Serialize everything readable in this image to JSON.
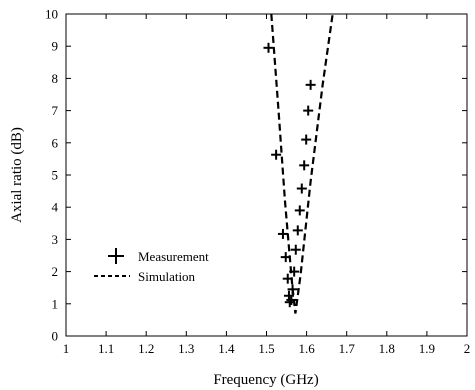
{
  "chart_data": {
    "type": "scatter",
    "xlabel": "Frequency (GHz)",
    "ylabel": "Axial ratio (dB)",
    "xlim": [
      1,
      2
    ],
    "ylim": [
      0,
      10
    ],
    "x_ticks": [
      "1",
      "1.1",
      "1.2",
      "1.3",
      "1.4",
      "1.5",
      "1.6",
      "1.7",
      "1.8",
      "1.9",
      "2"
    ],
    "y_ticks": [
      "0",
      "1",
      "2",
      "3",
      "4",
      "5",
      "6",
      "7",
      "8",
      "9",
      "10"
    ],
    "grid": false,
    "legend_position": "bottom-left",
    "series": [
      {
        "name": "Measurement",
        "style": "plus-markers",
        "color": "#000000",
        "points": [
          [
            1.505,
            8.95
          ],
          [
            1.524,
            5.63
          ],
          [
            1.541,
            3.17
          ],
          [
            1.548,
            2.45
          ],
          [
            1.553,
            1.78
          ],
          [
            1.556,
            1.25
          ],
          [
            1.558,
            1.05
          ],
          [
            1.562,
            1.12
          ],
          [
            1.565,
            1.45
          ],
          [
            1.569,
            2.0
          ],
          [
            1.573,
            2.68
          ],
          [
            1.578,
            3.28
          ],
          [
            1.583,
            3.9
          ],
          [
            1.588,
            4.58
          ],
          [
            1.594,
            5.3
          ],
          [
            1.599,
            6.1
          ],
          [
            1.604,
            7.0
          ],
          [
            1.61,
            7.8
          ]
        ]
      },
      {
        "name": "Simulation",
        "style": "dashed-line",
        "color": "#000000",
        "points": [
          [
            1.512,
            10.0
          ],
          [
            1.53,
            7.0
          ],
          [
            1.546,
            4.2
          ],
          [
            1.557,
            2.6
          ],
          [
            1.564,
            1.6
          ],
          [
            1.572,
            0.7
          ],
          [
            1.585,
            1.9
          ],
          [
            1.61,
            4.8
          ],
          [
            1.64,
            7.8
          ],
          [
            1.665,
            10.0
          ]
        ]
      }
    ]
  }
}
